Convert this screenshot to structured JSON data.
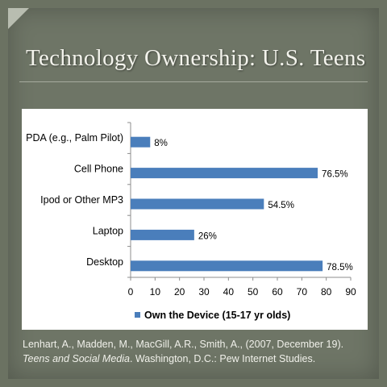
{
  "slide": {
    "title": "Technology  Ownership: U.S. Teens",
    "citation": {
      "part1": "Lenhart, A., Madden, M., MacGill, A.R., Smith, A., (2007, December 19). ",
      "italic": "Teens and Social Media",
      "part2": ". Washington, D.C.: Pew Internet Studies."
    }
  },
  "chart_data": {
    "type": "bar",
    "orientation": "horizontal",
    "categories": [
      "PDA (e.g., Palm Pilot)",
      "Cell Phone",
      "Ipod or Other MP3",
      "Laptop",
      "Desktop"
    ],
    "series": [
      {
        "name": "Own the Device (15-17 yr olds)",
        "values": [
          8,
          76.5,
          54.5,
          26,
          78.5
        ],
        "labels": [
          "8%",
          "76.5%",
          "54.5%",
          "26%",
          "78.5%"
        ],
        "color": "#4a7ebb"
      }
    ],
    "xlim": [
      0,
      90
    ],
    "xticks": [
      0,
      10,
      20,
      30,
      40,
      50,
      60,
      70,
      80,
      90
    ],
    "grid": false,
    "legend_position": "bottom"
  }
}
